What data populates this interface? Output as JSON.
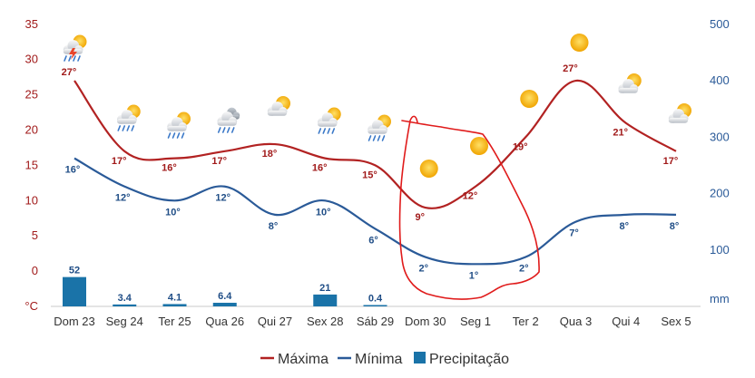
{
  "chart_data": {
    "type": "line",
    "categories": [
      "Dom 23",
      "Seg 24",
      "Ter 25",
      "Qua 26",
      "Qui 27",
      "Sex 28",
      "Sáb 29",
      "Dom 30",
      "Seg 1",
      "Ter 2",
      "Qua 3",
      "Qui 4",
      "Sex 5"
    ],
    "left_axis": {
      "unit": "°C",
      "range": [
        -5,
        35
      ],
      "ticks": [
        -5,
        0,
        5,
        10,
        15,
        20,
        25,
        30,
        35
      ],
      "tick_labels": [
        "°C",
        "0",
        "5",
        "10",
        "15",
        "20",
        "25",
        "30",
        "35"
      ]
    },
    "right_axis": {
      "unit": "mm",
      "range": [
        0,
        500
      ],
      "ticks": [
        0,
        100,
        200,
        300,
        400,
        500
      ],
      "tick_labels": [
        "mm",
        "100",
        "200",
        "300",
        "400",
        "500"
      ]
    },
    "series": [
      {
        "name": "Máxima",
        "type": "line",
        "color": "#b22222",
        "values": [
          27,
          17,
          16,
          17,
          18,
          16,
          15,
          9,
          12,
          19,
          27,
          21,
          17
        ]
      },
      {
        "name": "Mínima",
        "type": "line",
        "color": "#2a5a98",
        "values": [
          16,
          12,
          10,
          12,
          8,
          10,
          6,
          2,
          1,
          2,
          7,
          8,
          8
        ]
      },
      {
        "name": "Precipitação",
        "type": "bar",
        "axis": "right",
        "color": "#1a73a8",
        "values": [
          52,
          3.4,
          4.1,
          6.4,
          0,
          21,
          0.4,
          0,
          0,
          0,
          0,
          0,
          0
        ],
        "labels": [
          "52",
          "3.4",
          "4.1",
          "6.4",
          "",
          "21",
          "0.4",
          "",
          "",
          "",
          "",
          "",
          ""
        ]
      }
    ],
    "max_labels": [
      "27°",
      "17°",
      "16°",
      "17°",
      "18°",
      "16°",
      "15°",
      "9°",
      "12°",
      "19°",
      "27°",
      "21°",
      "17°"
    ],
    "min_labels": [
      "16°",
      "12°",
      "10°",
      "12°",
      "8°",
      "10°",
      "6°",
      "2°",
      "1°",
      "2°",
      "7°",
      "8°",
      "8°"
    ],
    "weather_icons": [
      "thunderstorm-rain-icon",
      "sun-cloud-rain-icon",
      "sun-cloud-rain-icon",
      "cloud-rain-icon",
      "sun-cloud-icon",
      "sun-cloud-rain-icon",
      "sun-cloud-rain-icon",
      "sun-icon",
      "sun-icon",
      "sun-icon",
      "sun-icon",
      "sun-cloud-icon",
      "sun-cloud-icon"
    ],
    "annotation": {
      "type": "hand-drawn-outline",
      "color": "#e01b1b",
      "around": [
        "Dom 30",
        "Seg 1",
        "Ter 2"
      ]
    },
    "legend": {
      "placement": "bottom",
      "entries": [
        "Máxima",
        "Mínima",
        "Precipitação"
      ]
    },
    "grid": false
  }
}
